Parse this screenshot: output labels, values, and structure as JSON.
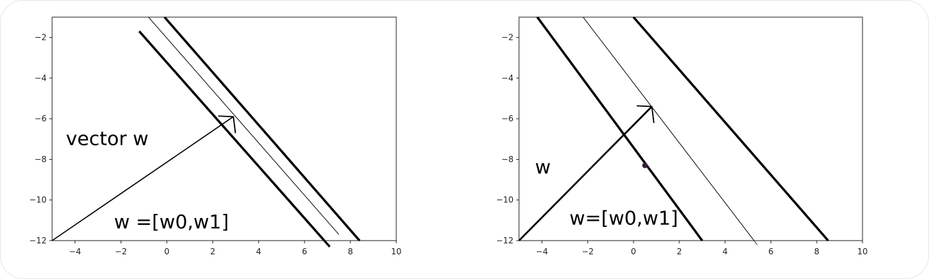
{
  "chart_data": [
    {
      "type": "line",
      "title": "",
      "xlabel": "",
      "ylabel": "",
      "xlim": [
        -5,
        10
      ],
      "ylim": [
        -12,
        -1
      ],
      "xticks": [
        "−4",
        "−2",
        "0",
        "2",
        "4",
        "6",
        "8",
        "10"
      ],
      "yticks": [
        "−2",
        "−4",
        "−6",
        "−8",
        "−10",
        "−12"
      ],
      "grid": false,
      "series": [
        {
          "style": "thick",
          "x": [
            -1.2,
            7.1
          ],
          "y": [
            -1.7,
            -12.3
          ]
        },
        {
          "style": "thin",
          "x": [
            -0.8,
            7.5
          ],
          "y": [
            -1.0,
            -11.7
          ]
        },
        {
          "style": "thick",
          "x": [
            -0.1,
            8.4
          ],
          "y": [
            -1.0,
            -12.0
          ]
        }
      ],
      "vector": {
        "from": [
          -5,
          -12
        ],
        "to": [
          2.9,
          -5.9
        ]
      },
      "annotations": [
        {
          "id": "a",
          "text": "vector w",
          "x": -4.4,
          "y": -7.3
        },
        {
          "id": "b",
          "text": "w =[w0,w1]",
          "x": -2.3,
          "y": -11.4
        }
      ]
    },
    {
      "type": "line",
      "title": "",
      "xlabel": "",
      "ylabel": "",
      "xlim": [
        -5,
        10
      ],
      "ylim": [
        -12,
        -1
      ],
      "xticks": [
        "−4",
        "−2",
        "0",
        "2",
        "4",
        "6",
        "8",
        "10"
      ],
      "yticks": [
        "−2",
        "−4",
        "−6",
        "−8",
        "−10",
        "−12"
      ],
      "grid": false,
      "series": [
        {
          "style": "thick",
          "x": [
            -4.2,
            3.0
          ],
          "y": [
            -1.0,
            -12.0
          ]
        },
        {
          "style": "thin",
          "x": [
            -2.2,
            5.4
          ],
          "y": [
            -1.0,
            -12.2
          ]
        },
        {
          "style": "thick",
          "x": [
            0.0,
            8.5
          ],
          "y": [
            -1.0,
            -12.0
          ]
        }
      ],
      "vector": {
        "from": [
          -5,
          -12
        ],
        "to": [
          0.8,
          -5.4
        ]
      },
      "point": {
        "x": 0.5,
        "y": -8.3
      },
      "annotations": [
        {
          "id": "c",
          "text": "w",
          "x": -4.3,
          "y": -8.7
        },
        {
          "id": "d",
          "text": "w=[w0,w1]",
          "x": -2.8,
          "y": -11.2
        }
      ]
    }
  ]
}
